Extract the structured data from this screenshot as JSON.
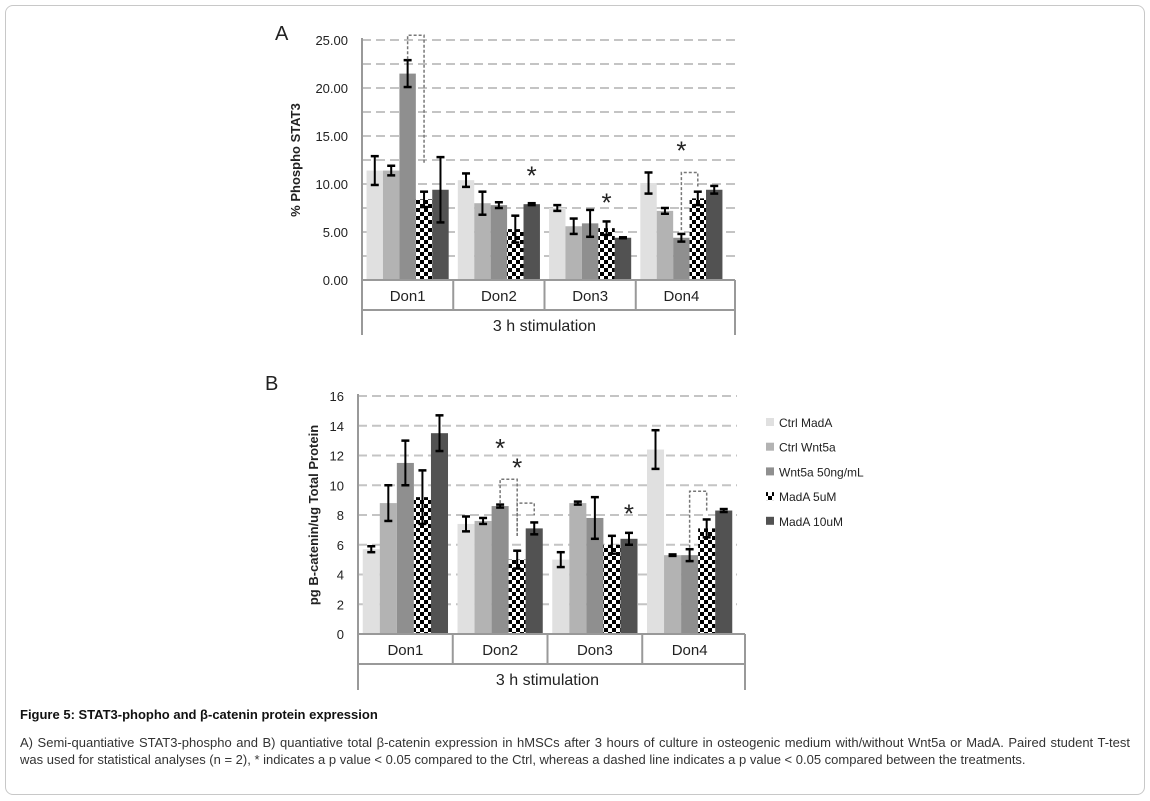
{
  "colors": {
    "Ctrl MadA": "#e0e0e0",
    "Ctrl Wnt5a": "#b3b3b3",
    "Wnt5a 50ng/mL": "#8f8f8f",
    "MadA 5uM": "checker",
    "MadA 10uM": "#525252",
    "grid": "#c4c4c4"
  },
  "legend": {
    "placement": "right",
    "items": [
      "Ctrl MadA",
      "Ctrl Wnt5a",
      "Wnt5a 50ng/mL",
      "MadA 5uM",
      "MadA 10uM"
    ]
  },
  "chart_data": [
    {
      "type": "bar",
      "panel_label": "A",
      "categories": [
        "Don1",
        "Don2",
        "Don3",
        "Don4"
      ],
      "xlabel": "3 h stimulation",
      "ylabel": "% Phospho STAT3",
      "ylim": [
        0,
        25
      ],
      "yticks": [
        "0.00",
        "5.00",
        "10.00",
        "15.00",
        "20.00",
        "25.00"
      ],
      "ytick_values": [
        0,
        5,
        10,
        15,
        20,
        25
      ],
      "grid": true,
      "grid_step": 2.5,
      "series": [
        {
          "name": "Ctrl MadA",
          "values": [
            11.4,
            10.4,
            7.5,
            10.1
          ],
          "errors": [
            1.5,
            0.7,
            0.3,
            1.1
          ]
        },
        {
          "name": "Ctrl Wnt5a",
          "values": [
            11.4,
            8.0,
            5.6,
            7.2
          ],
          "errors": [
            0.5,
            1.2,
            0.8,
            0.3
          ]
        },
        {
          "name": "Wnt5a 50ng/mL",
          "values": [
            21.5,
            7.8,
            5.9,
            4.4
          ],
          "errors": [
            1.4,
            0.3,
            1.4,
            0.4
          ]
        },
        {
          "name": "MadA 5uM",
          "values": [
            8.4,
            5.3,
            5.4,
            8.5
          ],
          "errors": [
            0.8,
            1.4,
            0.7,
            0.7
          ]
        },
        {
          "name": "MadA 10uM",
          "values": [
            9.4,
            7.9,
            4.4,
            9.4
          ],
          "errors": [
            3.4,
            0.1,
            0.05,
            0.4
          ]
        }
      ],
      "asterisks": [
        {
          "category": 1,
          "series": 4,
          "y": 11.2
        },
        {
          "category": 2,
          "series": 3,
          "y": 8.4
        },
        {
          "category": 3,
          "series": 2,
          "y": 13.8
        }
      ],
      "brackets": [
        {
          "category": 0,
          "from": 2,
          "to": 3,
          "y": 25.5,
          "from_y": 23.0,
          "to_y": 12.2
        },
        {
          "category": 3,
          "from": 2,
          "to": 3,
          "y": 11.2,
          "from_y": 5.2,
          "to_y": 9.6
        }
      ]
    },
    {
      "type": "bar",
      "panel_label": "B",
      "categories": [
        "Don1",
        "Don2",
        "Don3",
        "Don4"
      ],
      "xlabel": "3 h stimulation",
      "ylabel": "pg B-catenin/ug Total Protein",
      "ylim": [
        0,
        16
      ],
      "yticks": [
        "0",
        "2",
        "4",
        "6",
        "8",
        "10",
        "12",
        "14",
        "16"
      ],
      "ytick_values": [
        0,
        2,
        4,
        6,
        8,
        10,
        12,
        14,
        16
      ],
      "grid": true,
      "grid_step": 2,
      "series": [
        {
          "name": "Ctrl MadA",
          "values": [
            5.7,
            7.4,
            5.0,
            12.4
          ],
          "errors": [
            0.2,
            0.5,
            0.5,
            1.3
          ]
        },
        {
          "name": "Ctrl Wnt5a",
          "values": [
            8.8,
            7.6,
            8.8,
            5.3
          ],
          "errors": [
            1.2,
            0.2,
            0.1,
            0.05
          ]
        },
        {
          "name": "Wnt5a 50ng/mL",
          "values": [
            11.5,
            8.6,
            7.8,
            5.3
          ],
          "errors": [
            1.5,
            0.1,
            1.4,
            0.4
          ]
        },
        {
          "name": "MadA 5uM",
          "values": [
            9.2,
            5.0,
            6.0,
            7.1
          ],
          "errors": [
            1.8,
            0.6,
            0.6,
            0.6
          ]
        },
        {
          "name": "MadA 10uM",
          "values": [
            13.5,
            7.1,
            6.4,
            8.3
          ],
          "errors": [
            1.2,
            0.4,
            0.4,
            0.1
          ]
        }
      ],
      "asterisks": [
        {
          "category": 1,
          "series": 2,
          "y": 12.7
        },
        {
          "category": 1,
          "series": 3,
          "y": 11.4
        },
        {
          "category": 2,
          "series": 4,
          "y": 8.3
        }
      ],
      "brackets": [
        {
          "category": 1,
          "from": 2,
          "to": 3,
          "y": 10.4,
          "from_y": 8.8,
          "to_y": 6.6
        },
        {
          "category": 1,
          "from": 3,
          "to": 4,
          "y": 8.8,
          "from_y": 6.6,
          "to_y": 8.0
        },
        {
          "category": 3,
          "from": 2,
          "to": 3,
          "y": 9.6,
          "from_y": 5.8,
          "to_y": 8.2
        }
      ]
    }
  ],
  "caption": {
    "title": "Figure 5: STAT3-phopho and β-catenin protein expression",
    "text": "A) Semi-quantiative STAT3-phospho and B) quantiative total β-catenin expression in hMSCs after 3 hours of culture in osteogenic medium with/without Wnt5a or MadA. Paired student T-test was used for statistical analyses (n = 2), * indicates a p value < 0.05 compared to the Ctrl, whereas a dashed line indicates a p value < 0.05 compared between the treatments."
  }
}
